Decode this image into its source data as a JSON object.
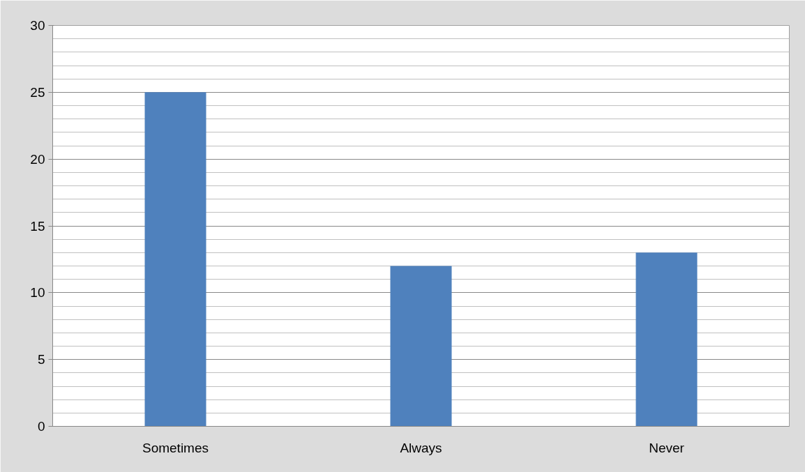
{
  "chart_data": {
    "type": "bar",
    "categories": [
      "Sometimes",
      "Always",
      "Never"
    ],
    "values": [
      25,
      12,
      13
    ],
    "color": "#4f81bd",
    "ylim": [
      0,
      30
    ],
    "yticks": [
      0,
      5,
      10,
      15,
      20,
      25,
      30
    ],
    "grid": "y"
  }
}
